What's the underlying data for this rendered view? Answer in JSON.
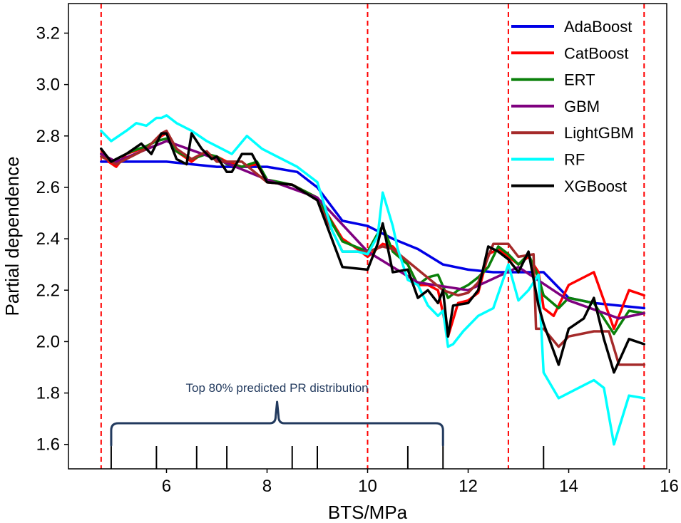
{
  "chart_data": {
    "type": "line",
    "title": "",
    "xlabel": "BTS/MPa",
    "ylabel": "Partial dependence",
    "xlim": [
      4.05,
      15.95
    ],
    "ylim": [
      1.505,
      3.315
    ],
    "xticks": [
      6,
      8,
      10,
      12,
      14,
      16
    ],
    "yticks": [
      1.6,
      1.8,
      2.0,
      2.2,
      2.4,
      2.6,
      2.8,
      3.0,
      3.2
    ],
    "xtick_labels": [
      "6",
      "8",
      "10",
      "12",
      "14",
      "16"
    ],
    "ytick_labels": [
      "1.6",
      "1.8",
      "2.0",
      "2.2",
      "2.4",
      "2.6",
      "2.8",
      "3.0",
      "3.2"
    ],
    "grid": false,
    "legend_position": "top-right",
    "vlines": [
      4.7,
      10.0,
      12.8,
      15.5
    ],
    "vline_color": "#ff0000",
    "rug": [
      4.9,
      5.8,
      6.6,
      7.2,
      8.5,
      9.0,
      10.8,
      11.5,
      13.5
    ],
    "annotation": {
      "text": "Top 80% predicted PR distribution",
      "color": "#223a5e",
      "x_start": 4.9,
      "x_end": 11.5
    },
    "series": [
      {
        "name": "AdaBoost",
        "color": "#0000e6",
        "x": [
          4.7,
          5.4,
          6.0,
          7.0,
          8.0,
          8.6,
          9.0,
          9.5,
          10.0,
          10.5,
          11.0,
          11.5,
          12.0,
          12.5,
          13.0,
          13.5,
          14.0,
          14.5,
          15.0,
          15.5
        ],
        "y": [
          2.7,
          2.7,
          2.7,
          2.68,
          2.68,
          2.66,
          2.6,
          2.47,
          2.45,
          2.4,
          2.36,
          2.3,
          2.28,
          2.27,
          2.27,
          2.27,
          2.17,
          2.15,
          2.14,
          2.13
        ]
      },
      {
        "name": "CatBoost",
        "color": "#ff0000",
        "x": [
          4.7,
          4.85,
          5.0,
          5.2,
          5.5,
          5.7,
          5.9,
          6.0,
          6.2,
          6.5,
          6.7,
          7.0,
          7.2,
          7.5,
          7.8,
          8.0,
          8.5,
          9.0,
          9.5,
          9.8,
          10.0,
          10.3,
          10.5,
          10.8,
          11.0,
          11.2,
          11.4,
          11.6,
          11.8,
          12.0,
          12.2,
          12.4,
          12.6,
          12.8,
          13.0,
          13.2,
          13.4,
          13.5,
          13.7,
          14.0,
          14.5,
          14.9,
          15.2,
          15.5
        ],
        "y": [
          2.75,
          2.7,
          2.68,
          2.73,
          2.75,
          2.77,
          2.8,
          2.81,
          2.74,
          2.7,
          2.73,
          2.72,
          2.7,
          2.68,
          2.69,
          2.62,
          2.61,
          2.56,
          2.4,
          2.36,
          2.33,
          2.38,
          2.37,
          2.3,
          2.22,
          2.22,
          2.2,
          2.02,
          2.15,
          2.16,
          2.19,
          2.34,
          2.36,
          2.33,
          2.3,
          2.33,
          2.27,
          2.13,
          2.1,
          2.22,
          2.27,
          2.05,
          2.2,
          2.18
        ]
      },
      {
        "name": "ERT",
        "color": "#0a800a",
        "x": [
          4.7,
          4.9,
          5.0,
          5.3,
          5.6,
          5.8,
          6.0,
          6.2,
          6.5,
          6.8,
          7.0,
          7.2,
          7.5,
          7.8,
          8.0,
          8.5,
          9.0,
          9.5,
          10.0,
          10.2,
          10.3,
          10.5,
          10.8,
          11.0,
          11.2,
          11.4,
          11.6,
          11.8,
          12.0,
          12.2,
          12.4,
          12.6,
          12.8,
          13.0,
          13.2,
          13.4,
          13.5,
          13.8,
          14.0,
          14.5,
          14.9,
          15.2,
          15.5
        ],
        "y": [
          2.73,
          2.7,
          2.71,
          2.74,
          2.76,
          2.78,
          2.79,
          2.74,
          2.71,
          2.73,
          2.72,
          2.69,
          2.68,
          2.7,
          2.63,
          2.61,
          2.56,
          2.39,
          2.35,
          2.42,
          2.45,
          2.35,
          2.3,
          2.22,
          2.25,
          2.26,
          2.17,
          2.2,
          2.22,
          2.25,
          2.29,
          2.37,
          2.34,
          2.3,
          2.34,
          2.25,
          2.18,
          2.13,
          2.17,
          2.15,
          2.03,
          2.12,
          2.11
        ]
      },
      {
        "name": "GBM",
        "color": "#7f007f",
        "x": [
          4.7,
          5.0,
          6.0,
          7.0,
          8.0,
          9.0,
          10.0,
          11.0,
          12.0,
          13.0,
          14.0,
          15.0,
          15.5
        ],
        "y": [
          2.73,
          2.7,
          2.78,
          2.71,
          2.63,
          2.56,
          2.35,
          2.23,
          2.2,
          2.29,
          2.16,
          2.09,
          2.11
        ]
      },
      {
        "name": "LightGBM",
        "color": "#a52a2a",
        "x": [
          4.7,
          5.0,
          5.3,
          5.6,
          5.9,
          6.0,
          6.2,
          6.5,
          6.8,
          7.0,
          7.5,
          8.0,
          8.5,
          9.0,
          9.5,
          10.0,
          10.3,
          10.5,
          11.0,
          11.5,
          11.8,
          12.0,
          12.2,
          12.5,
          12.8,
          13.0,
          13.3,
          13.35,
          13.5,
          13.8,
          14.0,
          14.5,
          14.8,
          15.0,
          15.5
        ],
        "y": [
          2.72,
          2.69,
          2.72,
          2.75,
          2.81,
          2.82,
          2.75,
          2.71,
          2.74,
          2.7,
          2.7,
          2.62,
          2.61,
          2.55,
          2.35,
          2.35,
          2.37,
          2.36,
          2.28,
          2.2,
          2.18,
          2.19,
          2.23,
          2.38,
          2.38,
          2.33,
          2.34,
          2.05,
          2.05,
          1.98,
          2.02,
          2.04,
          2.04,
          1.91,
          1.91
        ]
      },
      {
        "name": "RF",
        "color": "#00ffff",
        "x": [
          4.7,
          4.9,
          5.2,
          5.4,
          5.6,
          5.8,
          5.9,
          6.0,
          6.2,
          6.5,
          6.8,
          7.0,
          7.3,
          7.6,
          7.9,
          8.2,
          8.6,
          9.0,
          9.3,
          9.5,
          9.8,
          10.0,
          10.2,
          10.3,
          10.5,
          10.6,
          10.8,
          11.0,
          11.2,
          11.4,
          11.5,
          11.6,
          11.7,
          11.9,
          12.2,
          12.5,
          12.8,
          13.0,
          13.2,
          13.4,
          13.5,
          13.8,
          14.0,
          14.3,
          14.5,
          14.7,
          14.9,
          15.2,
          15.5
        ],
        "y": [
          2.82,
          2.78,
          2.82,
          2.85,
          2.84,
          2.87,
          2.87,
          2.88,
          2.85,
          2.82,
          2.78,
          2.76,
          2.73,
          2.8,
          2.75,
          2.72,
          2.68,
          2.62,
          2.43,
          2.35,
          2.35,
          2.34,
          2.41,
          2.58,
          2.45,
          2.36,
          2.24,
          2.22,
          2.14,
          2.1,
          2.12,
          1.98,
          1.99,
          2.04,
          2.1,
          2.13,
          2.3,
          2.16,
          2.2,
          2.26,
          1.88,
          1.78,
          1.8,
          1.83,
          1.85,
          1.82,
          1.6,
          1.79,
          1.78
        ]
      },
      {
        "name": "XGBoost",
        "color": "#000000",
        "x": [
          4.7,
          4.9,
          5.2,
          5.5,
          5.7,
          5.9,
          6.0,
          6.2,
          6.4,
          6.5,
          6.7,
          6.9,
          7.0,
          7.2,
          7.3,
          7.5,
          7.7,
          8.0,
          8.5,
          9.0,
          9.5,
          10.0,
          10.2,
          10.3,
          10.5,
          10.8,
          11.0,
          11.2,
          11.4,
          11.5,
          11.6,
          11.7,
          12.0,
          12.2,
          12.4,
          12.6,
          12.8,
          13.0,
          13.2,
          13.4,
          13.5,
          13.8,
          14.0,
          14.3,
          14.5,
          14.7,
          14.9,
          15.2,
          15.5
        ],
        "y": [
          2.75,
          2.7,
          2.73,
          2.77,
          2.73,
          2.81,
          2.81,
          2.71,
          2.69,
          2.81,
          2.75,
          2.71,
          2.72,
          2.66,
          2.66,
          2.73,
          2.73,
          2.62,
          2.61,
          2.55,
          2.29,
          2.28,
          2.38,
          2.46,
          2.27,
          2.28,
          2.17,
          2.2,
          2.15,
          2.2,
          2.02,
          2.14,
          2.15,
          2.2,
          2.37,
          2.35,
          2.32,
          2.27,
          2.35,
          2.14,
          2.07,
          1.91,
          2.05,
          2.09,
          2.17,
          2.01,
          1.88,
          2.01,
          1.99
        ]
      }
    ]
  }
}
